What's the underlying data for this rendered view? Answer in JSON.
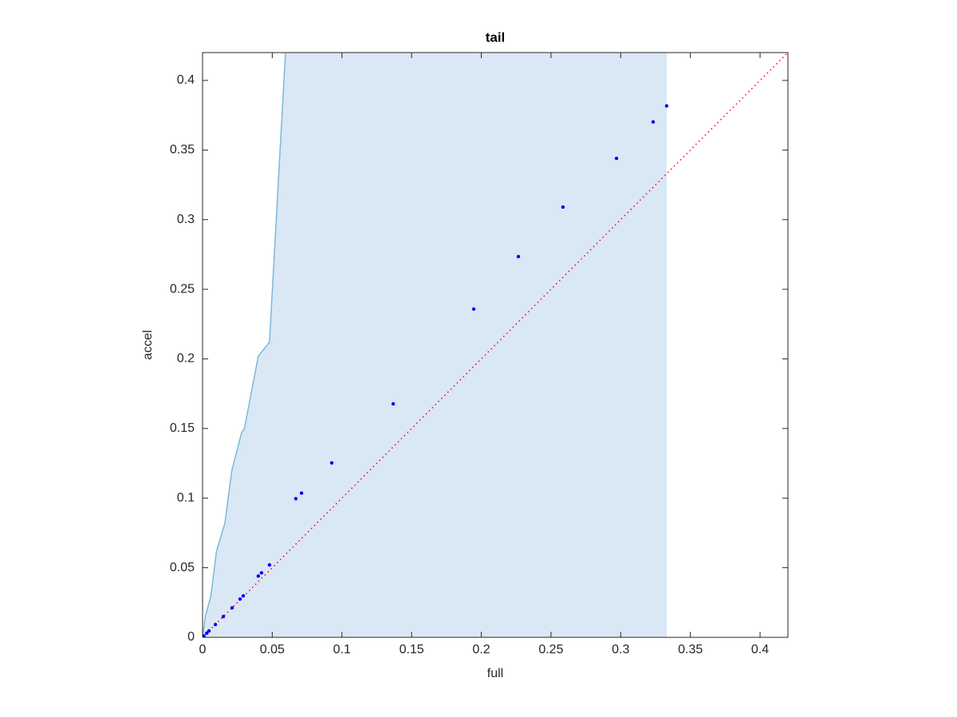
{
  "chart_data": {
    "type": "scatter",
    "title": "tail",
    "x_label": "full",
    "y_label": "accel",
    "xlim": [
      0,
      0.42
    ],
    "ylim": [
      0,
      0.42
    ],
    "xticks": [
      0,
      0.05,
      0.1,
      0.15,
      0.2,
      0.25,
      0.3,
      0.35,
      0.4
    ],
    "yticks": [
      0,
      0.05,
      0.1,
      0.15,
      0.2,
      0.25,
      0.3,
      0.35,
      0.4
    ],
    "area": {
      "color": "#d9e8f4",
      "edge_color": "#7fb7d9",
      "x": [
        0,
        0.002,
        0.006,
        0.01,
        0.016,
        0.021,
        0.028,
        0.03,
        0.04,
        0.048,
        0.0595,
        0.333
      ],
      "y": [
        0,
        0.015,
        0.03,
        0.062,
        0.082,
        0.12,
        0.147,
        0.15,
        0.202,
        0.212,
        0.42,
        0.42
      ]
    },
    "reference_line": {
      "color": "#ff0000",
      "x": [
        0,
        0.42
      ],
      "y": [
        0,
        0.42
      ]
    },
    "points": {
      "color": "#0000ff",
      "x": [
        0.333,
        0.3233,
        0.297,
        0.2586,
        0.2266,
        0.1946,
        0.1368,
        0.0927,
        0.071,
        0.0669,
        0.048,
        0.0423,
        0.04,
        0.0292,
        0.0269,
        0.0212,
        0.0149,
        0.0092,
        0.0046,
        0.003,
        0.001,
        0
      ],
      "y": [
        0.3817,
        0.3702,
        0.344,
        0.309,
        0.2735,
        0.2358,
        0.1677,
        0.1253,
        0.1036,
        0.0996,
        0.052,
        0.0463,
        0.044,
        0.0298,
        0.0275,
        0.0212,
        0.0149,
        0.0092,
        0.0046,
        0.003,
        0.001,
        0
      ]
    }
  }
}
